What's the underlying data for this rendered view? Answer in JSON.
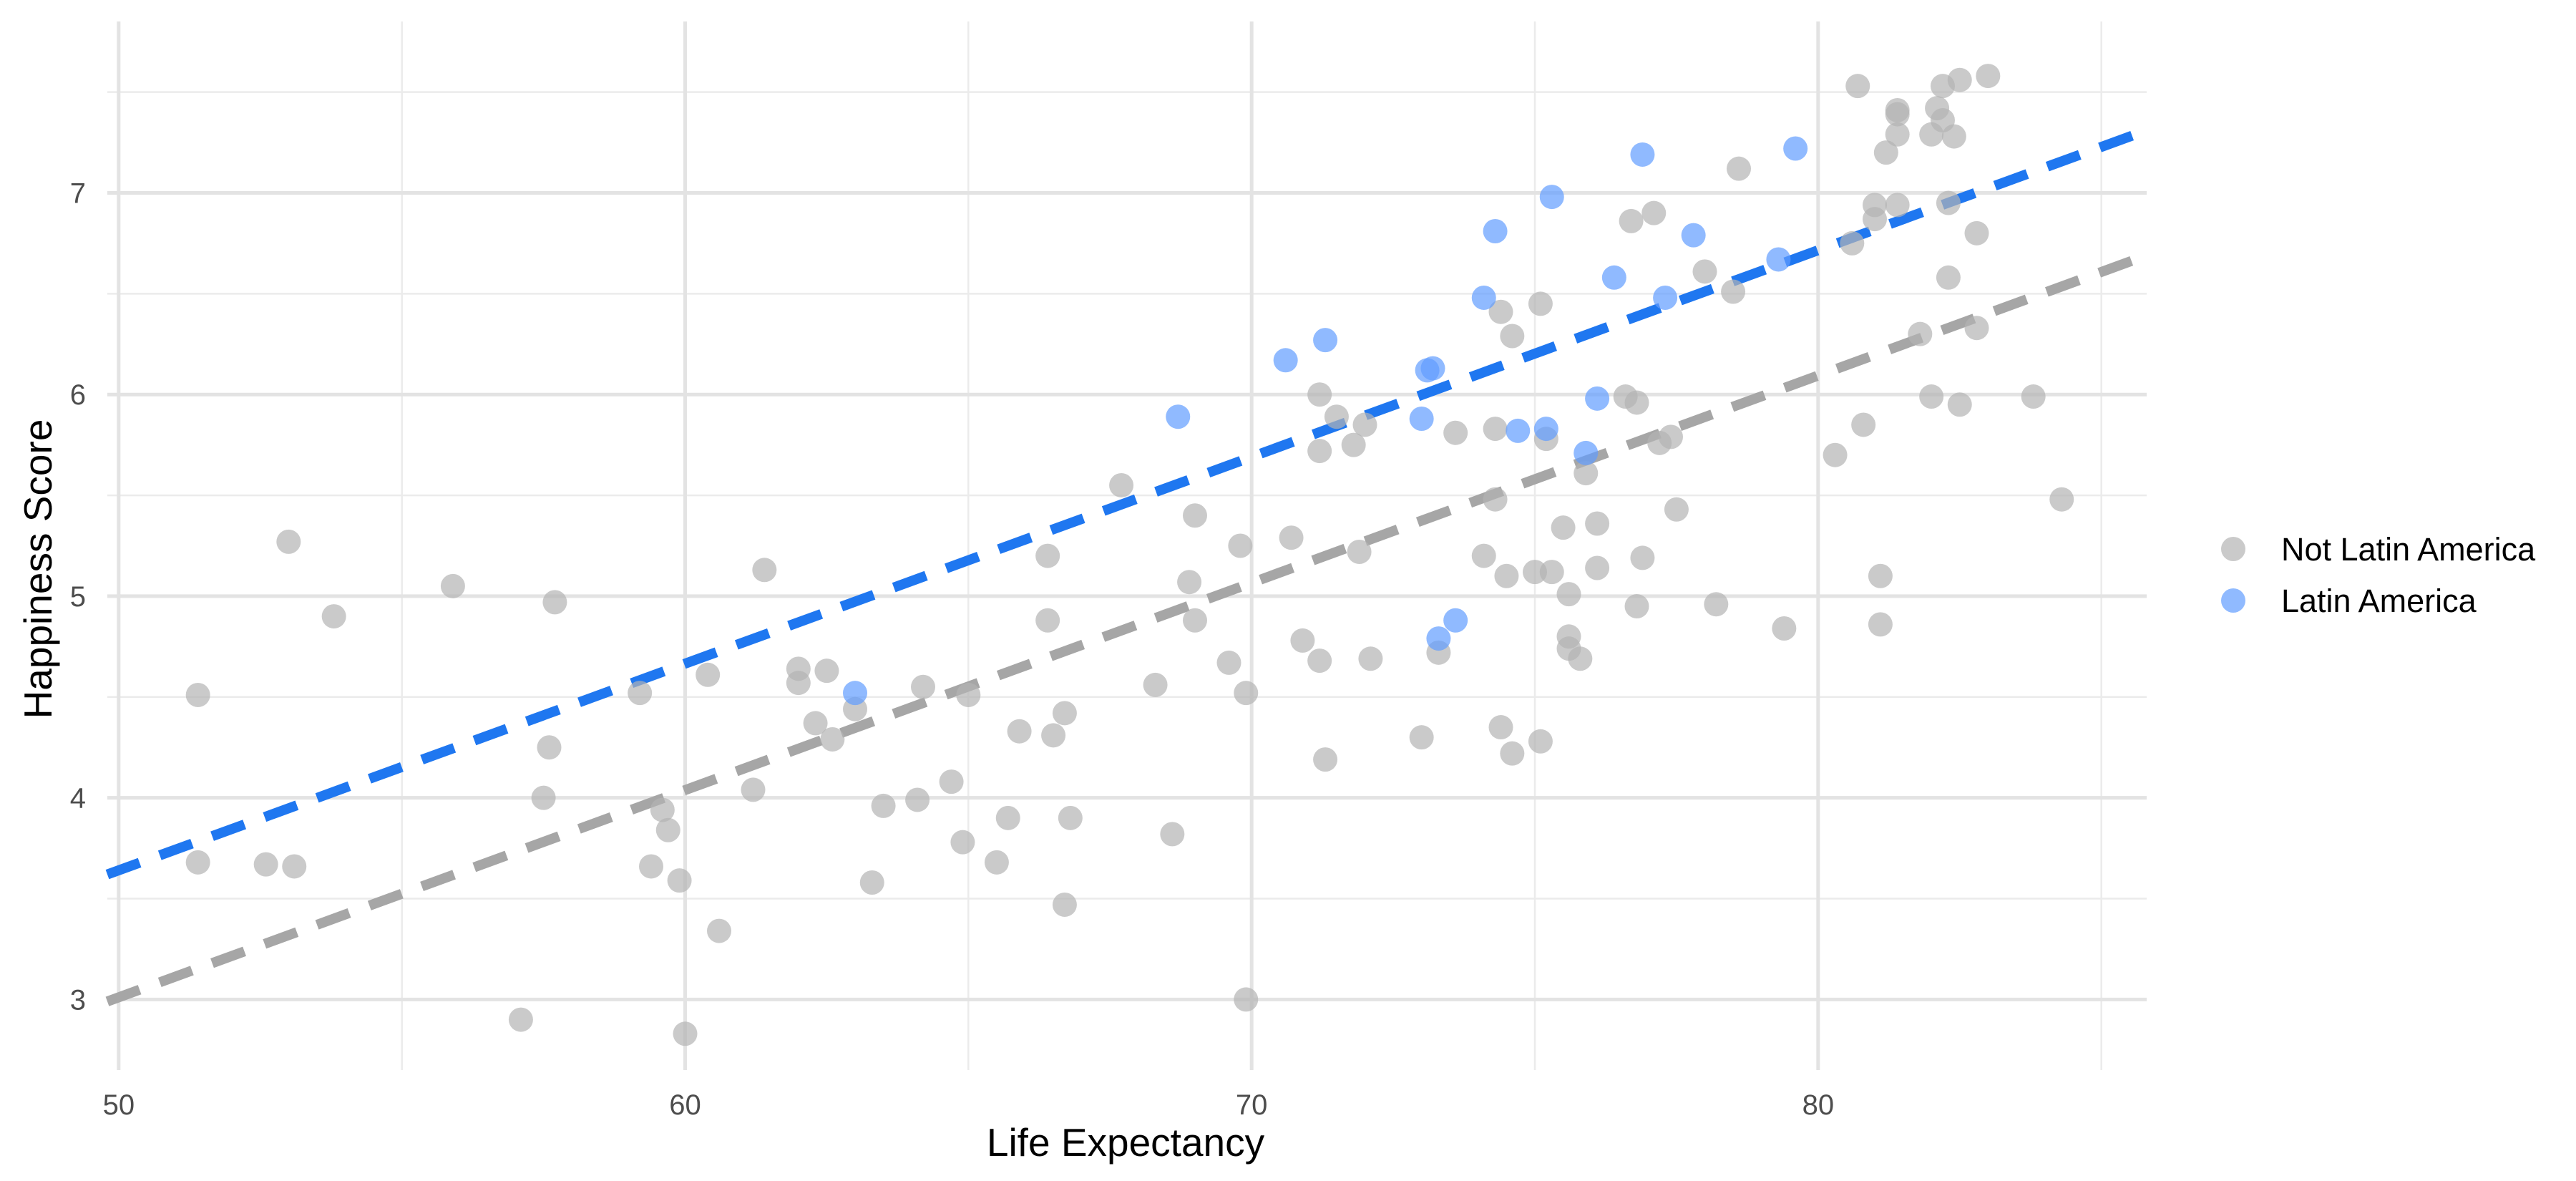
{
  "chart_data": {
    "type": "scatter",
    "title": "",
    "xlabel": "Life Expectancy",
    "ylabel": "Happiness Score",
    "xlim": [
      49.8,
      85.8
    ],
    "ylim": [
      2.65,
      7.85
    ],
    "x_ticks": [
      50,
      60,
      70,
      80
    ],
    "y_ticks": [
      3,
      4,
      5,
      6,
      7
    ],
    "x_tick_labels": [
      "50",
      "60",
      "70",
      "80"
    ],
    "y_tick_labels": [
      "3",
      "4",
      "5",
      "6",
      "7"
    ],
    "grid": true,
    "legend_position": "right",
    "series": [
      {
        "name": "Not Latin America",
        "color": "#b3b3b3",
        "trend_color": "#a6a6a6",
        "trend": {
          "style": "dashed",
          "x": [
            49.8,
            85.8
          ],
          "y": [
            2.99,
            6.69
          ]
        },
        "points": [
          [
            51.4,
            4.51
          ],
          [
            51.4,
            3.68
          ],
          [
            52.6,
            3.67
          ],
          [
            53.0,
            5.27
          ],
          [
            53.1,
            3.66
          ],
          [
            53.8,
            4.9
          ],
          [
            55.9,
            5.05
          ],
          [
            57.1,
            2.9
          ],
          [
            57.5,
            4.0
          ],
          [
            57.6,
            4.25
          ],
          [
            57.7,
            4.97
          ],
          [
            59.2,
            4.52
          ],
          [
            59.4,
            3.66
          ],
          [
            59.6,
            3.94
          ],
          [
            59.7,
            3.84
          ],
          [
            59.9,
            3.59
          ],
          [
            60.0,
            2.83
          ],
          [
            60.4,
            4.61
          ],
          [
            60.6,
            3.34
          ],
          [
            61.2,
            4.04
          ],
          [
            61.4,
            5.13
          ],
          [
            62.0,
            4.64
          ],
          [
            62.0,
            4.57
          ],
          [
            62.3,
            4.37
          ],
          [
            62.5,
            4.63
          ],
          [
            62.6,
            4.29
          ],
          [
            63.0,
            4.44
          ],
          [
            63.3,
            3.58
          ],
          [
            63.5,
            3.96
          ],
          [
            64.1,
            3.99
          ],
          [
            64.2,
            4.55
          ],
          [
            64.7,
            4.08
          ],
          [
            64.9,
            3.78
          ],
          [
            65.0,
            4.51
          ],
          [
            65.5,
            3.68
          ],
          [
            65.7,
            3.9
          ],
          [
            65.9,
            4.33
          ],
          [
            66.4,
            5.2
          ],
          [
            66.4,
            4.88
          ],
          [
            66.5,
            4.31
          ],
          [
            66.7,
            3.47
          ],
          [
            66.7,
            4.42
          ],
          [
            66.8,
            3.9
          ],
          [
            67.7,
            5.55
          ],
          [
            68.3,
            4.56
          ],
          [
            68.6,
            3.82
          ],
          [
            68.9,
            5.07
          ],
          [
            69.0,
            5.4
          ],
          [
            69.0,
            4.88
          ],
          [
            69.6,
            4.67
          ],
          [
            69.8,
            5.25
          ],
          [
            69.9,
            4.52
          ],
          [
            69.9,
            3.0
          ],
          [
            70.7,
            5.29
          ],
          [
            70.9,
            4.78
          ],
          [
            71.2,
            6.0
          ],
          [
            71.2,
            5.72
          ],
          [
            71.2,
            4.68
          ],
          [
            71.3,
            4.19
          ],
          [
            71.5,
            5.89
          ],
          [
            71.8,
            5.75
          ],
          [
            71.9,
            5.22
          ],
          [
            72.0,
            5.85
          ],
          [
            72.1,
            4.69
          ],
          [
            73.0,
            4.3
          ],
          [
            73.3,
            4.72
          ],
          [
            73.6,
            5.81
          ],
          [
            74.1,
            5.2
          ],
          [
            74.3,
            5.83
          ],
          [
            74.3,
            5.48
          ],
          [
            74.4,
            6.41
          ],
          [
            74.4,
            4.35
          ],
          [
            74.5,
            5.1
          ],
          [
            74.6,
            6.29
          ],
          [
            74.6,
            4.22
          ],
          [
            75.0,
            5.12
          ],
          [
            75.1,
            6.45
          ],
          [
            75.1,
            4.28
          ],
          [
            75.2,
            5.78
          ],
          [
            75.3,
            5.12
          ],
          [
            75.5,
            5.34
          ],
          [
            75.6,
            5.01
          ],
          [
            75.6,
            4.8
          ],
          [
            75.6,
            4.74
          ],
          [
            75.8,
            4.69
          ],
          [
            75.9,
            5.61
          ],
          [
            76.1,
            5.36
          ],
          [
            76.1,
            5.14
          ],
          [
            76.6,
            5.99
          ],
          [
            76.7,
            6.86
          ],
          [
            76.8,
            5.96
          ],
          [
            76.8,
            4.95
          ],
          [
            76.9,
            5.19
          ],
          [
            77.1,
            6.9
          ],
          [
            77.2,
            5.76
          ],
          [
            77.4,
            5.79
          ],
          [
            77.5,
            5.43
          ],
          [
            78.0,
            6.61
          ],
          [
            78.2,
            4.96
          ],
          [
            78.5,
            6.51
          ],
          [
            78.6,
            7.12
          ],
          [
            79.4,
            4.84
          ],
          [
            80.3,
            5.7
          ],
          [
            80.6,
            6.75
          ],
          [
            80.7,
            7.53
          ],
          [
            80.8,
            5.85
          ],
          [
            81.0,
            6.87
          ],
          [
            81.0,
            6.94
          ],
          [
            81.1,
            4.86
          ],
          [
            81.1,
            5.1
          ],
          [
            81.2,
            7.2
          ],
          [
            81.4,
            6.94
          ],
          [
            81.4,
            7.41
          ],
          [
            81.4,
            7.29
          ],
          [
            81.4,
            7.39
          ],
          [
            81.8,
            6.3
          ],
          [
            82.0,
            5.99
          ],
          [
            82.0,
            7.29
          ],
          [
            82.1,
            7.42
          ],
          [
            82.2,
            7.36
          ],
          [
            82.2,
            7.53
          ],
          [
            82.3,
            6.95
          ],
          [
            82.3,
            6.58
          ],
          [
            82.4,
            7.28
          ],
          [
            82.5,
            7.56
          ],
          [
            82.5,
            5.95
          ],
          [
            82.8,
            6.8
          ],
          [
            82.8,
            6.33
          ],
          [
            83.0,
            7.58
          ],
          [
            83.8,
            5.99
          ],
          [
            84.3,
            5.48
          ]
        ]
      },
      {
        "name": "Latin America",
        "color": "#619cff",
        "trend_color": "#1f77f0",
        "trend": {
          "style": "dashed",
          "x": [
            49.8,
            85.8
          ],
          "y": [
            3.62,
            7.31
          ]
        },
        "points": [
          [
            63.0,
            4.52
          ],
          [
            68.7,
            5.89
          ],
          [
            70.6,
            6.17
          ],
          [
            71.3,
            6.27
          ],
          [
            73.0,
            5.88
          ],
          [
            73.1,
            6.12
          ],
          [
            73.2,
            6.13
          ],
          [
            73.3,
            4.79
          ],
          [
            73.6,
            4.88
          ],
          [
            74.1,
            6.48
          ],
          [
            74.3,
            6.81
          ],
          [
            74.7,
            5.82
          ],
          [
            75.2,
            5.83
          ],
          [
            75.3,
            6.98
          ],
          [
            75.9,
            5.71
          ],
          [
            76.1,
            5.98
          ],
          [
            76.4,
            6.58
          ],
          [
            76.9,
            7.19
          ],
          [
            77.3,
            6.48
          ],
          [
            77.8,
            6.79
          ],
          [
            79.3,
            6.67
          ],
          [
            79.6,
            7.22
          ]
        ]
      }
    ]
  }
}
